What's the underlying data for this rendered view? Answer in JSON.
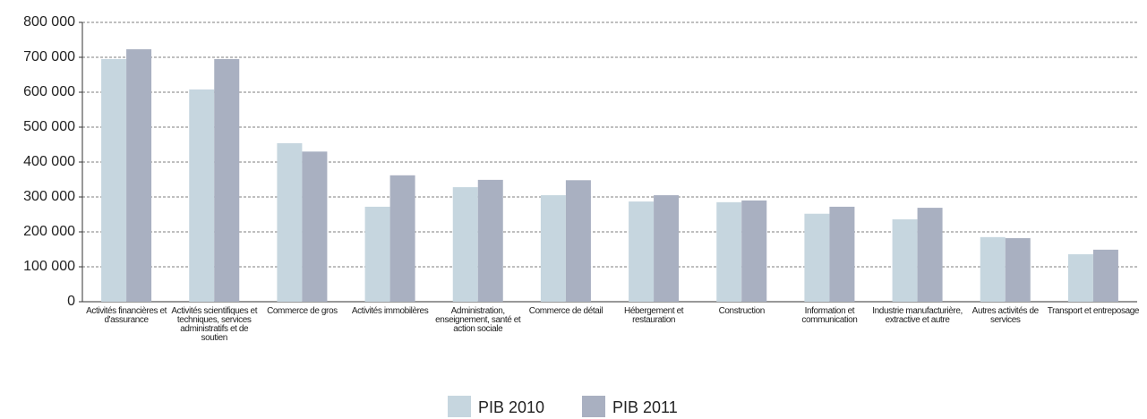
{
  "chart_data": {
    "type": "bar",
    "categories": [
      "Activités financières et d'assurance",
      "Activités scientifiques et techniques, services administratifs et de soutien",
      "Commerce de gros",
      "Activités immobilères",
      "Administration, enseignement, santé et action sociale",
      "Commerce de détail",
      "Hébergement et restauration",
      "Construction",
      "Information et communication",
      "Industrie manufacturière, extractive et autre",
      "Autres activités de services",
      "Transport et entreposage"
    ],
    "series": [
      {
        "name": "PIB 2010",
        "color": "#c6d6df",
        "values": [
          695000,
          608000,
          454000,
          272000,
          328000,
          305000,
          287000,
          285000,
          252000,
          236000,
          185000,
          136000
        ]
      },
      {
        "name": "PIB 2011",
        "color": "#a9b0c1",
        "values": [
          723000,
          695000,
          430000,
          362000,
          349000,
          348000,
          305000,
          290000,
          272000,
          269000,
          182000,
          149000
        ]
      }
    ],
    "ylim": [
      0,
      800000
    ],
    "yticks": [
      0,
      {
        "value": 100000,
        "label": "100 000"
      },
      {
        "value": 200000,
        "label": "200 000"
      },
      {
        "value": 300000,
        "label": "300 000"
      },
      {
        "value": 400000,
        "label": "400 000"
      },
      {
        "value": 500000,
        "label": "500 000"
      },
      {
        "value": 600000,
        "label": "600 000"
      },
      {
        "value": 700000,
        "label": "700 000"
      },
      {
        "value": 800000,
        "label": "800 000"
      }
    ],
    "grid": true,
    "legend": "bottom"
  }
}
